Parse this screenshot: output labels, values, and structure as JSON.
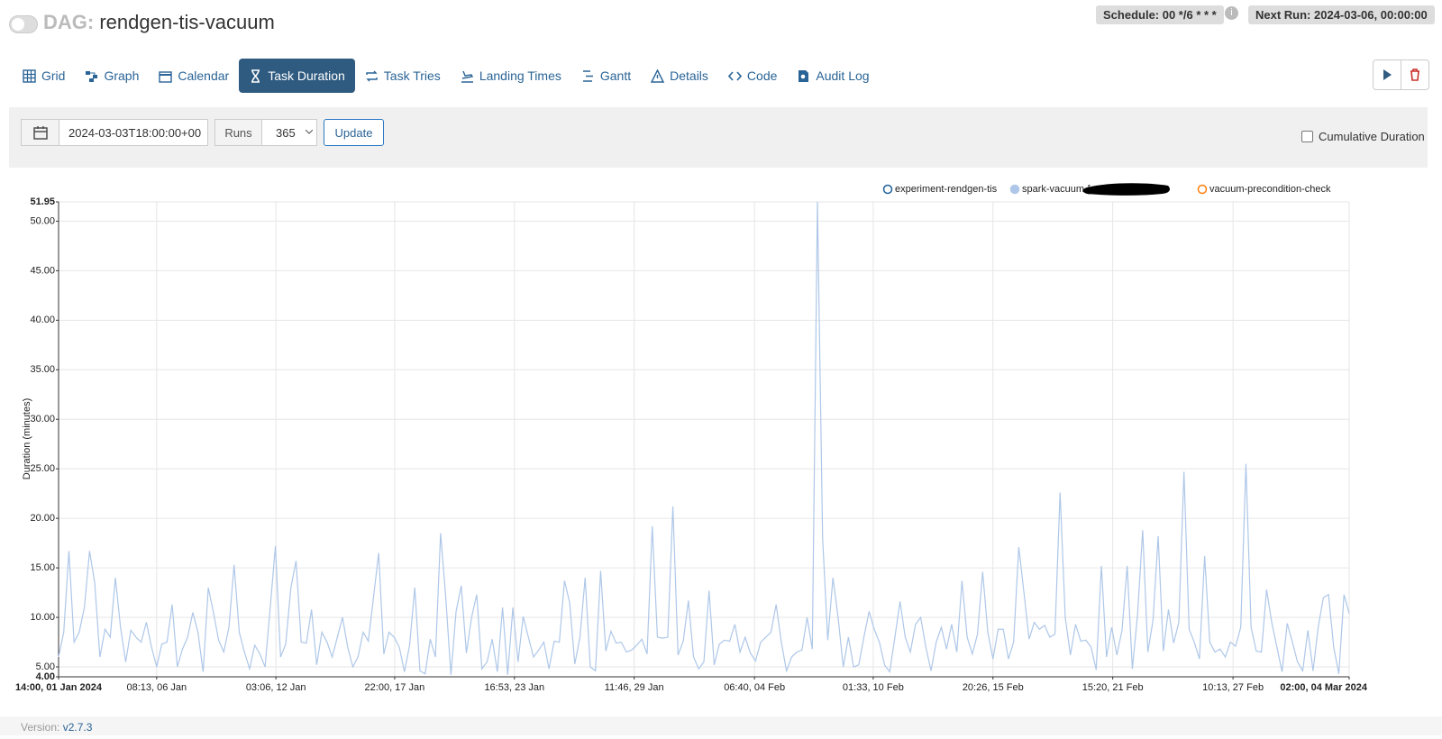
{
  "header": {
    "dag_prefix": "DAG:",
    "dag_id": "rendgen-tis-vacuum",
    "schedule": "Schedule: 00 */6 * * *",
    "next_run": "Next Run: 2024-03-06, 00:00:00"
  },
  "tabs": [
    "Grid",
    "Graph",
    "Calendar",
    "Task Duration",
    "Task Tries",
    "Landing Times",
    "Gantt",
    "Details",
    "Code",
    "Audit Log"
  ],
  "controls": {
    "date": "2024-03-03T18:00:00+00",
    "runs_label": "Runs",
    "runs_value": "365",
    "update": "Update",
    "cumulative": "Cumulative Duration"
  },
  "footer": {
    "version_label": "Version:",
    "version": "v2.7.3"
  },
  "chart_data": {
    "type": "line",
    "ylabel": "Duration (minutes)",
    "xlim": [
      0,
      250
    ],
    "xticks": [
      {
        "value": 0,
        "label": "14:00, 01 Jan 2024"
      },
      {
        "value": 19,
        "label": "08:13, 06 Jan"
      },
      {
        "value": 42.1,
        "label": "03:06, 12 Jan"
      },
      {
        "value": 65.1,
        "label": "22:00, 17 Jan"
      },
      {
        "value": 88.3,
        "label": "16:53, 23 Jan"
      },
      {
        "value": 111.5,
        "label": "11:46, 29 Jan"
      },
      {
        "value": 134.8,
        "label": "06:40, 04 Feb"
      },
      {
        "value": 157.8,
        "label": "01:33, 10 Feb"
      },
      {
        "value": 181,
        "label": "20:26, 15 Feb"
      },
      {
        "value": 204.2,
        "label": "15:20, 21 Feb"
      },
      {
        "value": 227.5,
        "label": "10:13, 27 Feb"
      },
      {
        "value": 250,
        "label": "02:00, 04 Mar 2024"
      }
    ],
    "ylim": [
      4,
      51.95
    ],
    "yticks": [
      {
        "value": 4,
        "label": "4.00"
      },
      {
        "value": 5,
        "label": "5.00"
      },
      {
        "value": 10,
        "label": "10.00"
      },
      {
        "value": 15,
        "label": "15.00"
      },
      {
        "value": 20,
        "label": "20.00"
      },
      {
        "value": 25,
        "label": "25.00"
      },
      {
        "value": 30,
        "label": "30.00"
      },
      {
        "value": 35,
        "label": "35.00"
      },
      {
        "value": 40,
        "label": "40.00"
      },
      {
        "value": 45,
        "label": "45.00"
      },
      {
        "value": 50,
        "label": "50.00"
      },
      51.95
    ],
    "grid": true,
    "series": [
      {
        "name": "experiment-rendgen-tis",
        "color": "#1f5f9a",
        "values": []
      },
      {
        "name": "spark-vacuum-[redacted]-log",
        "color": "#aec7e8",
        "values": [
          6,
          8.5,
          16.7,
          7.5,
          8.5,
          11,
          16.7,
          13.5,
          6,
          8.8,
          8,
          14,
          9,
          5.5,
          8.7,
          8,
          7.5,
          9.5,
          7,
          5,
          7.3,
          7.5,
          11.3,
          5,
          6.8,
          8,
          10.5,
          8.5,
          4.5,
          13,
          10.5,
          7.7,
          6.5,
          9,
          15.3,
          8.5,
          6.5,
          4.8,
          7.2,
          6.3,
          5,
          11,
          17.2,
          6,
          7.3,
          13,
          15.7,
          7.5,
          7.4,
          10.8,
          5.2,
          8.5,
          7.5,
          6,
          8,
          10,
          7,
          5,
          6,
          8.5,
          7.6,
          12,
          16.5,
          6.3,
          8.5,
          8,
          7,
          4.5,
          7.2,
          13,
          4.6,
          4.3,
          7.8,
          6,
          18.5,
          12,
          4.2,
          10.6,
          13.2,
          6.4,
          10,
          12.3,
          4.8,
          5.5,
          7.8,
          4.5,
          11,
          4.2,
          11,
          5.5,
          10.1,
          8,
          6,
          6.7,
          7.5,
          4.8,
          7.6,
          7.5,
          13.7,
          11.5,
          5.3,
          8,
          14,
          5,
          4.6,
          14.7,
          6.6,
          8.6,
          7.4,
          7.5,
          6.5,
          6.7,
          7.2,
          7.8,
          6.3,
          19.2,
          8,
          7.9,
          8,
          21.2,
          6.2,
          7.6,
          11.7,
          6,
          4.8,
          5.5,
          12.7,
          5.2,
          7.3,
          7.7,
          7.6,
          9.3,
          6.5,
          8,
          6.4,
          5.6,
          7.5,
          8,
          8.5,
          11.3,
          7.5,
          4.6,
          6,
          6.5,
          6.7,
          10,
          6.8,
          51.95,
          18,
          7.7,
          14,
          10,
          5,
          8,
          5,
          5.2,
          8,
          10.6,
          8.8,
          7.5,
          5.2,
          4.5,
          8,
          11.6,
          8,
          6.5,
          9.3,
          10,
          7,
          4.6,
          7.5,
          9,
          6.8,
          9.3,
          6.5,
          13.7,
          8,
          6.3,
          8.3,
          14.6,
          8.5,
          5.8,
          8.8,
          8.8,
          5.8,
          7.5,
          17.1,
          12.5,
          7.8,
          9.5,
          8.8,
          9.2,
          8,
          8.3,
          22.6,
          10,
          6.2,
          9.3,
          7.6,
          7.7,
          7,
          4.7,
          15.2,
          6,
          9,
          6.2,
          8.7,
          15.2,
          4.8,
          10.2,
          18.8,
          6.5,
          9.7,
          18.2,
          6.6,
          10.8,
          7.4,
          9.5,
          24.7,
          8.8,
          7.5,
          5.8,
          16.2,
          7.5,
          6.5,
          6.8,
          6,
          7.5,
          7.1,
          9,
          25.5,
          9,
          6.6,
          6.5,
          12.8,
          9.5,
          7,
          4.5,
          9.4,
          7.5,
          5.5,
          4.6,
          8.7,
          4.6,
          9,
          12,
          12.3,
          7,
          4.3,
          12.3,
          10.4
        ]
      },
      {
        "name": "vacuum-precondition-check",
        "color": "#ff7f0e",
        "values": []
      }
    ]
  }
}
